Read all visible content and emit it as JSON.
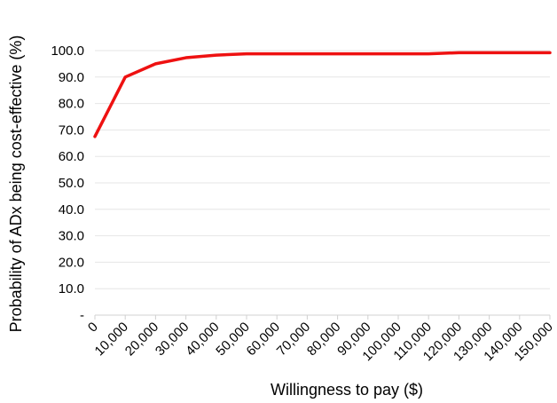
{
  "chart_data": {
    "type": "line",
    "title": "",
    "xlabel": "Willingness to pay ($)",
    "ylabel": "Probability of ADx being cost-effective (%)",
    "x": [
      0,
      10000,
      20000,
      30000,
      40000,
      50000,
      60000,
      70000,
      80000,
      90000,
      100000,
      110000,
      120000,
      130000,
      140000,
      150000
    ],
    "x_tick_labels": [
      "0",
      "10,000",
      "20,000",
      "30,000",
      "40,000",
      "50,000",
      "60,000",
      "70,000",
      "80,000",
      "90,000",
      "100,000",
      "110,000",
      "120,000",
      "130,000",
      "140,000",
      "150,000"
    ],
    "y_tick_labels": [
      "-",
      "10.0",
      "20.0",
      "30.0",
      "40.0",
      "50.0",
      "60.0",
      "70.0",
      "80.0",
      "90.0",
      "100.0"
    ],
    "y_ticks": [
      0,
      10,
      20,
      30,
      40,
      50,
      60,
      70,
      80,
      90,
      100
    ],
    "ylim": [
      0,
      100
    ],
    "xlim": [
      0,
      150000
    ],
    "grid": true,
    "legend": "none",
    "series": [
      {
        "color": "#ee1111",
        "values": [
          67.5,
          90.0,
          95.0,
          97.3,
          98.3,
          98.8,
          98.8,
          98.8,
          98.8,
          98.8,
          98.8,
          98.8,
          99.2,
          99.2,
          99.2,
          99.2
        ]
      }
    ],
    "colors": {
      "grid": "#e6e6e6",
      "axis": "#d0d0d0",
      "text": "#000000"
    }
  }
}
